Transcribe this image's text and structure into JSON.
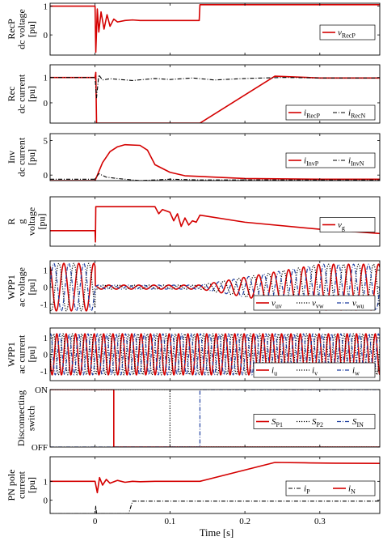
{
  "figure": {
    "xlabel": "Time [s]",
    "x_ticks": [
      "0",
      "0.1",
      "0.2",
      "0.3"
    ],
    "colors": {
      "red": "#d40000",
      "black": "#000000",
      "blue": "#1f3fa0",
      "axis": "#000000"
    }
  },
  "chart_data": [
    {
      "type": "line",
      "ylabel": [
        "RecP",
        "dc voltage",
        "[pu]"
      ],
      "ylim": [
        -0.7,
        1.1
      ],
      "y_ticks": [
        "1",
        "0"
      ],
      "y_tick_values": [
        1,
        0
      ],
      "xlim": [
        -0.06,
        0.38
      ],
      "legend": {
        "position": "right",
        "entries": [
          {
            "main": "v",
            "sub": "RecP",
            "style": "solid-red"
          }
        ]
      },
      "series": [
        {
          "name": "v_RecP",
          "style": "solid-red",
          "x": [
            -0.06,
            0.0,
            0.001,
            0.003,
            0.005,
            0.008,
            0.012,
            0.016,
            0.02,
            0.025,
            0.03,
            0.04,
            0.05,
            0.06,
            0.08,
            0.1,
            0.12,
            0.139,
            0.14,
            0.2,
            0.3,
            0.38
          ],
          "y": [
            1.0,
            1.0,
            -0.6,
            0.9,
            0.1,
            0.8,
            0.2,
            0.7,
            0.3,
            0.55,
            0.45,
            0.5,
            0.52,
            0.5,
            0.5,
            0.5,
            0.5,
            0.5,
            1.05,
            1.05,
            1.05,
            1.05
          ]
        }
      ]
    },
    {
      "type": "line",
      "ylabel": [
        "Rec",
        "dc current",
        "[pu]"
      ],
      "ylim": [
        -0.8,
        1.5
      ],
      "y_ticks": [
        "1",
        "0"
      ],
      "y_tick_values": [
        1,
        0
      ],
      "xlim": [
        -0.06,
        0.38
      ],
      "legend": {
        "position": "bottom-right",
        "entries": [
          {
            "main": "i",
            "sub": "RecP",
            "style": "solid-red"
          },
          {
            "main": "i",
            "sub": "RecN",
            "style": "dashdot-black"
          }
        ]
      },
      "series": [
        {
          "name": "i_RecP",
          "style": "solid-red",
          "x": [
            -0.06,
            0.0,
            0.001,
            0.002,
            0.14,
            0.24,
            0.3,
            0.38
          ],
          "y": [
            1.0,
            1.0,
            1.2,
            -0.8,
            -0.8,
            1.05,
            0.98,
            0.98
          ]
        },
        {
          "name": "i_RecN",
          "style": "dashdot-black",
          "x": [
            -0.06,
            0.0,
            0.002,
            0.005,
            0.01,
            0.02,
            0.05,
            0.08,
            0.1,
            0.13,
            0.16,
            0.2,
            0.25,
            0.3,
            0.38
          ],
          "y": [
            1.0,
            1.0,
            0.2,
            1.1,
            0.9,
            0.95,
            0.88,
            0.96,
            0.92,
            0.98,
            0.9,
            0.96,
            1.0,
            0.98,
            0.98
          ]
        }
      ]
    },
    {
      "type": "line",
      "ylabel": [
        "Inv",
        "dc current",
        "[pu]"
      ],
      "ylim": [
        -0.8,
        6.0
      ],
      "y_ticks": [
        "5",
        "0"
      ],
      "y_tick_values": [
        5,
        0
      ],
      "xlim": [
        -0.06,
        0.38
      ],
      "legend": {
        "position": "right",
        "entries": [
          {
            "main": "i",
            "sub": "InvP",
            "style": "solid-red"
          },
          {
            "main": "i",
            "sub": "InvN",
            "style": "dashdot-black"
          }
        ]
      },
      "series": [
        {
          "name": "i_InvP",
          "style": "solid-red",
          "x": [
            -0.06,
            0.0,
            0.005,
            0.01,
            0.02,
            0.03,
            0.04,
            0.06,
            0.07,
            0.08,
            0.1,
            0.12,
            0.2,
            0.3,
            0.38
          ],
          "y": [
            -0.8,
            -0.8,
            0.5,
            1.8,
            3.4,
            4.1,
            4.4,
            4.3,
            3.6,
            1.5,
            0.4,
            -0.1,
            -0.5,
            -0.6,
            -0.6
          ]
        },
        {
          "name": "i_InvN",
          "style": "dashdot-black",
          "x": [
            -0.06,
            0.0,
            0.005,
            0.015,
            0.03,
            0.06,
            0.1,
            0.14,
            0.2,
            0.3,
            0.38
          ],
          "y": [
            -0.6,
            -0.6,
            0.2,
            -0.3,
            -0.5,
            -0.8,
            -0.6,
            -0.7,
            -0.7,
            -0.7,
            -0.7
          ]
        }
      ]
    },
    {
      "type": "line",
      "ylabel": [
        "R",
        "g",
        "voltage",
        "[pu]"
      ],
      "ylim": [
        -0.05,
        0.3
      ],
      "y_ticks": [],
      "y_tick_values": [],
      "xlim": [
        -0.06,
        0.38
      ],
      "legend": {
        "position": "right",
        "entries": [
          {
            "main": "v",
            "sub": "g",
            "style": "solid-red"
          }
        ]
      },
      "series": [
        {
          "name": "v_g",
          "style": "solid-red",
          "x": [
            -0.06,
            0.0,
            0.0005,
            0.001,
            0.08,
            0.085,
            0.09,
            0.1,
            0.105,
            0.11,
            0.115,
            0.12,
            0.125,
            0.13,
            0.135,
            0.14,
            0.2,
            0.3,
            0.38
          ],
          "y": [
            0.06,
            0.06,
            -0.02,
            0.23,
            0.23,
            0.18,
            0.21,
            0.19,
            0.13,
            0.18,
            0.09,
            0.15,
            0.1,
            0.13,
            0.12,
            0.17,
            0.12,
            0.07,
            0.04
          ]
        }
      ]
    },
    {
      "type": "line",
      "ylabel": [
        "WPP1",
        "ac voltage",
        "[pu]"
      ],
      "ylim": [
        -1.55,
        1.55
      ],
      "y_ticks": [
        "1",
        "0",
        "-1"
      ],
      "y_tick_values": [
        1,
        0,
        -1
      ],
      "xlim": [
        -0.06,
        0.38
      ],
      "legend": {
        "position": "bottom-right",
        "entries": [
          {
            "main": "v",
            "sub": "uv",
            "style": "solid-red"
          },
          {
            "main": "v",
            "sub": "vw",
            "style": "dotted-black"
          },
          {
            "main": "v",
            "sub": "wu",
            "style": "dashdot-blue"
          }
        ]
      },
      "wave": {
        "frequency_hz": 50,
        "pre_amplitude": 1.4,
        "fault_start": 0.0,
        "fault_amplitude": 0.12,
        "recovery_start": 0.14,
        "recovery_end": 0.3,
        "post_amplitude": 1.35
      }
    },
    {
      "type": "line",
      "ylabel": [
        "WPP1",
        "ac current",
        "[pu]"
      ],
      "ylim": [
        -1.6,
        1.6
      ],
      "y_ticks": [
        "1",
        "0",
        "-1"
      ],
      "y_tick_values": [
        1,
        0,
        -1
      ],
      "xlim": [
        -0.06,
        0.38
      ],
      "legend": {
        "position": "bottom-right",
        "entries": [
          {
            "main": "i",
            "sub": "u",
            "style": "solid-red"
          },
          {
            "main": "i",
            "sub": "v",
            "style": "dotted-black"
          },
          {
            "main": "i",
            "sub": "w",
            "style": "dashdot-blue"
          }
        ]
      },
      "wave": {
        "frequency_hz": 80,
        "amplitude": 1.25
      }
    },
    {
      "type": "line",
      "ylabel": [
        "Disconnecting",
        "switch"
      ],
      "ylim": [
        0,
        1
      ],
      "y_ticks": [
        "ON",
        "OFF"
      ],
      "y_tick_values": [
        1,
        0
      ],
      "xlim": [
        -0.06,
        0.38
      ],
      "legend": {
        "position": "right",
        "entries": [
          {
            "main": "S",
            "sub": "P1",
            "style": "solid-red"
          },
          {
            "main": "S",
            "sub": "P2",
            "style": "dotted-black"
          },
          {
            "main": "S",
            "sub": "IN",
            "style": "dashdot-blue"
          }
        ]
      },
      "series": [
        {
          "name": "S_P1",
          "style": "solid-red",
          "x": [
            -0.06,
            0.025,
            0.025,
            0.38
          ],
          "y": [
            1,
            1,
            0,
            0
          ]
        },
        {
          "name": "S_P2",
          "style": "dotted-black",
          "x": [
            -0.06,
            0.1,
            0.1,
            0.38
          ],
          "y": [
            1,
            1,
            0,
            0
          ]
        },
        {
          "name": "S_IN",
          "style": "dashdot-blue",
          "x": [
            -0.06,
            0.14,
            0.14,
            0.38
          ],
          "y": [
            0,
            0,
            1,
            1
          ]
        }
      ]
    },
    {
      "type": "line",
      "ylabel": [
        "PN pole",
        "current",
        "[pu]"
      ],
      "ylim": [
        -0.7,
        2.3
      ],
      "y_ticks": [
        "1",
        "0"
      ],
      "y_tick_values": [
        1,
        0
      ],
      "xlim": [
        -0.06,
        0.38
      ],
      "legend": {
        "position": "right",
        "entries": [
          {
            "main": "i",
            "sub": "P",
            "style": "dashdot-black"
          },
          {
            "main": "i",
            "sub": "N",
            "style": "solid-red"
          }
        ]
      },
      "series": [
        {
          "name": "i_P",
          "style": "dashdot-black",
          "x": [
            -0.06,
            -0.001,
            0.0,
            0.001,
            0.002,
            0.03,
            0.045,
            0.05,
            0.38
          ],
          "y": [
            -0.7,
            -0.7,
            -0.7,
            -0.3,
            -0.7,
            -0.7,
            -0.7,
            -0.05,
            -0.05
          ]
        },
        {
          "name": "i_N",
          "style": "solid-red",
          "x": [
            -0.06,
            0.0,
            0.003,
            0.006,
            0.01,
            0.015,
            0.02,
            0.03,
            0.04,
            0.05,
            0.06,
            0.08,
            0.1,
            0.14,
            0.24,
            0.28,
            0.32,
            0.38
          ],
          "y": [
            1.0,
            1.0,
            0.4,
            1.2,
            0.8,
            1.1,
            0.9,
            1.05,
            0.95,
            1.0,
            0.98,
            1.0,
            1.0,
            1.0,
            2.0,
            1.98,
            1.96,
            1.95
          ]
        }
      ]
    }
  ]
}
